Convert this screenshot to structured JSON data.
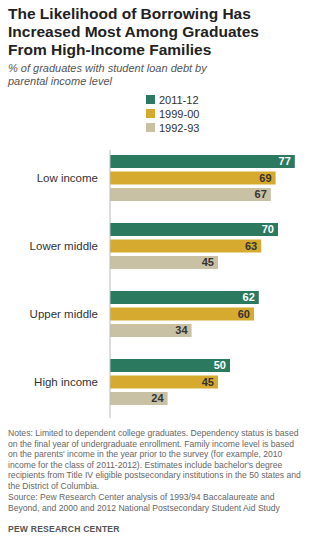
{
  "chart_data": {
    "type": "bar",
    "orientation": "horizontal",
    "title": "The Likelihood of Borrowing Has Increased Most Among Graduates From High-Income Families",
    "subtitle": "% of graduates with student loan debt by parental income level",
    "categories": [
      "Low income",
      "Lower middle",
      "Upper middle",
      "High income"
    ],
    "series": [
      {
        "name": "2011-12",
        "color": "#2b7a5f",
        "values": [
          77,
          70,
          62,
          50
        ]
      },
      {
        "name": "1999-00",
        "color": "#d6a92f",
        "values": [
          69,
          63,
          60,
          45
        ]
      },
      {
        "name": "1992-93",
        "color": "#c9c1a4",
        "values": [
          67,
          45,
          34,
          24
        ]
      }
    ],
    "ylim": [
      0,
      80
    ],
    "tick_labels": "x",
    "data_labels": true,
    "grid": false,
    "legend": "top",
    "annotations": [
      "Notes: Limited to dependent college graduates. Dependency status is based on the final year of undergraduate enrollment. Family income level is based on the parents' income in the year prior to the survey (for example, 2010 income for the class of 2011-2012). Estimates include bachelor's degree recipients from Title IV eligible postsecondary institutions in the 50 states and the District of Columbia.",
      "Source: Pew Research Center analysis of 1993/94 Baccalaureate and Beyond, and 2000 and 2012 National Postsecondary Student Aid Study",
      "PEW RESEARCH CENTER"
    ]
  }
}
